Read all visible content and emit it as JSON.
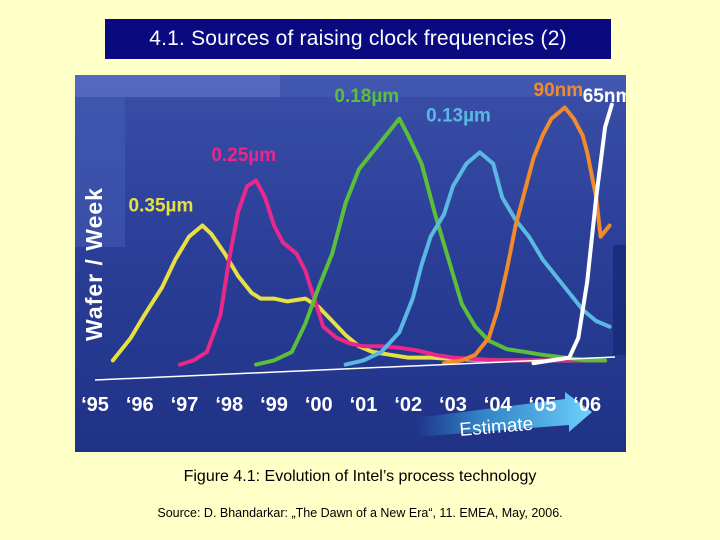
{
  "slide": {
    "title": "4.1. Sources of raising clock frequencies (2)",
    "caption": "Figure 4.1: Evolution of Intel’s process technology",
    "source": "Source: D. Bhandarkar: „The Dawn of a New Era“, 11. EMEA, May, 2006."
  },
  "chart_data": {
    "type": "line",
    "ylabel": "Wafer / Week",
    "estimate_label": "Estimate",
    "x_ticks": [
      "‘95",
      "‘96",
      "‘97",
      "‘98",
      "‘99",
      "‘00",
      "‘01",
      "‘02",
      "‘03",
      "‘04",
      "‘05",
      "‘06"
    ],
    "xlim": [
      1995,
      2006.8
    ],
    "ylim": [
      0,
      100
    ],
    "series": [
      {
        "name": "0.35µm",
        "color": "#e6e040",
        "points": [
          [
            1995.4,
            2
          ],
          [
            1995.8,
            10
          ],
          [
            1996.1,
            18
          ],
          [
            1996.5,
            28
          ],
          [
            1996.8,
            38
          ],
          [
            1997.1,
            46
          ],
          [
            1997.4,
            50
          ],
          [
            1997.6,
            47
          ],
          [
            1997.9,
            40
          ],
          [
            1998.2,
            32
          ],
          [
            1998.5,
            26
          ],
          [
            1998.7,
            24
          ],
          [
            1999.0,
            24
          ],
          [
            1999.3,
            23
          ],
          [
            1999.7,
            24
          ],
          [
            2000.0,
            21
          ],
          [
            2000.3,
            16
          ],
          [
            2000.6,
            11
          ],
          [
            2000.9,
            7
          ],
          [
            2001.2,
            5
          ],
          [
            2001.6,
            4
          ],
          [
            2002.0,
            3
          ],
          [
            2002.5,
            3
          ],
          [
            2003.0,
            2.5
          ],
          [
            2004.0,
            2
          ],
          [
            2005.0,
            2
          ],
          [
            2006.4,
            2
          ]
        ]
      },
      {
        "name": "0.25µm",
        "color": "#e8288a",
        "points": [
          [
            1996.9,
            0.5
          ],
          [
            1997.2,
            2
          ],
          [
            1997.5,
            5
          ],
          [
            1997.8,
            18
          ],
          [
            1998.0,
            38
          ],
          [
            1998.2,
            55
          ],
          [
            1998.4,
            64
          ],
          [
            1998.6,
            66
          ],
          [
            1998.8,
            60
          ],
          [
            1999.0,
            50
          ],
          [
            1999.2,
            44
          ],
          [
            1999.5,
            40
          ],
          [
            1999.7,
            34
          ],
          [
            1999.9,
            24
          ],
          [
            2000.1,
            14
          ],
          [
            2000.4,
            10
          ],
          [
            2000.7,
            8
          ],
          [
            2001.0,
            7
          ],
          [
            2001.4,
            7
          ],
          [
            2001.8,
            6.5
          ],
          [
            2002.2,
            5.5
          ],
          [
            2002.6,
            4
          ],
          [
            2003.0,
            3
          ],
          [
            2004.0,
            2
          ],
          [
            2005.0,
            2
          ],
          [
            2006.4,
            2
          ]
        ]
      },
      {
        "name": "0.18µm",
        "color": "#5abf3a",
        "points": [
          [
            1998.6,
            0.5
          ],
          [
            1999.0,
            2
          ],
          [
            1999.4,
            5
          ],
          [
            1999.7,
            15
          ],
          [
            2000.0,
            28
          ],
          [
            2000.3,
            40
          ],
          [
            2000.6,
            58
          ],
          [
            2000.9,
            70
          ],
          [
            2001.2,
            76
          ],
          [
            2001.5,
            82
          ],
          [
            2001.8,
            88
          ],
          [
            2002.0,
            82
          ],
          [
            2002.3,
            72
          ],
          [
            2002.6,
            54
          ],
          [
            2002.9,
            38
          ],
          [
            2003.2,
            22
          ],
          [
            2003.5,
            14
          ],
          [
            2003.8,
            9
          ],
          [
            2004.2,
            6
          ],
          [
            2004.6,
            5
          ],
          [
            2005.0,
            4
          ],
          [
            2005.5,
            3
          ],
          [
            2006.0,
            2
          ],
          [
            2006.4,
            2
          ]
        ]
      },
      {
        "name": "0.13µm",
        "color": "#5ab8e2",
        "points": [
          [
            2000.6,
            0.5
          ],
          [
            2001.0,
            2
          ],
          [
            2001.4,
            5
          ],
          [
            2001.8,
            12
          ],
          [
            2002.1,
            24
          ],
          [
            2002.3,
            36
          ],
          [
            2002.5,
            46
          ],
          [
            2002.8,
            54
          ],
          [
            2003.0,
            64
          ],
          [
            2003.3,
            72
          ],
          [
            2003.6,
            76
          ],
          [
            2003.9,
            72
          ],
          [
            2004.1,
            60
          ],
          [
            2004.4,
            52
          ],
          [
            2004.7,
            46
          ],
          [
            2005.0,
            38
          ],
          [
            2005.3,
            32
          ],
          [
            2005.6,
            26
          ],
          [
            2005.9,
            20
          ],
          [
            2006.2,
            16
          ],
          [
            2006.5,
            14
          ]
        ]
      },
      {
        "name": "90nm",
        "color": "#f08a2a",
        "points": [
          [
            2002.8,
            1
          ],
          [
            2003.2,
            2
          ],
          [
            2003.5,
            4
          ],
          [
            2003.8,
            10
          ],
          [
            2004.0,
            20
          ],
          [
            2004.2,
            34
          ],
          [
            2004.4,
            50
          ],
          [
            2004.6,
            62
          ],
          [
            2004.8,
            74
          ],
          [
            2005.0,
            82
          ],
          [
            2005.2,
            88
          ],
          [
            2005.5,
            92
          ],
          [
            2005.7,
            88
          ],
          [
            2005.9,
            82
          ],
          [
            2006.0,
            76
          ],
          [
            2006.2,
            60
          ],
          [
            2006.3,
            46
          ],
          [
            2006.5,
            50
          ]
        ]
      },
      {
        "name": "65nm",
        "color": "#ffffff",
        "points": [
          [
            2004.8,
            1
          ],
          [
            2005.2,
            2
          ],
          [
            2005.6,
            3
          ],
          [
            2005.8,
            10
          ],
          [
            2006.0,
            30
          ],
          [
            2006.2,
            60
          ],
          [
            2006.4,
            85
          ],
          [
            2006.55,
            93
          ]
        ]
      }
    ],
    "labels": [
      {
        "text": "0.35µm",
        "color": "#e6e040",
        "x": 1995.75,
        "y": 55
      },
      {
        "text": "0.25µm",
        "color": "#e8288a",
        "x": 1997.6,
        "y": 73
      },
      {
        "text": "0.18µm",
        "color": "#5abf3a",
        "x": 2000.35,
        "y": 94
      },
      {
        "text": "0.13µm",
        "color": "#5ab8e2",
        "x": 2002.4,
        "y": 87
      },
      {
        "text": "90nm",
        "color": "#f08a2a",
        "x": 2004.8,
        "y": 96
      },
      {
        "text": "65nm",
        "color": "#ffffff",
        "x": 2005.9,
        "y": 94
      }
    ]
  }
}
